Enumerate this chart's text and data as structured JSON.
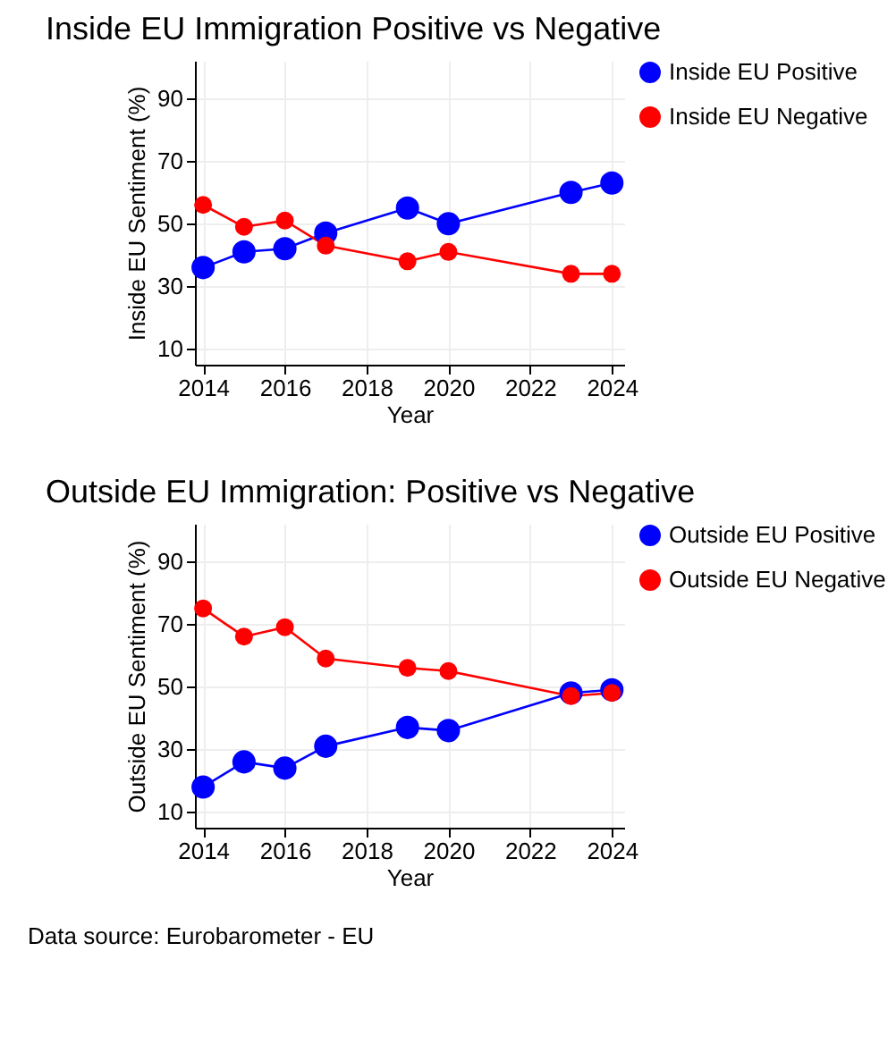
{
  "chart_data": [
    {
      "type": "line",
      "title": "Inside EU Immigration Positive vs Negative",
      "xlabel": "Year",
      "ylabel": "Inside EU Sentiment (%)",
      "x": [
        2014,
        2015,
        2016,
        2017,
        2019,
        2020,
        2023,
        2024
      ],
      "series": [
        {
          "name": "Inside EU Positive",
          "color": "#0000ff",
          "values": [
            36,
            41,
            42,
            47,
            55,
            50,
            60,
            63
          ]
        },
        {
          "name": "Inside EU Negative",
          "color": "#ff0000",
          "values": [
            56,
            49,
            51,
            43,
            38,
            41,
            34,
            34
          ]
        }
      ],
      "xlim": [
        2013.8,
        2024.3
      ],
      "xticks": [
        2014,
        2016,
        2018,
        2020,
        2022,
        2024
      ],
      "ylim": [
        5,
        102
      ],
      "yticks": [
        10,
        30,
        50,
        70,
        90
      ],
      "grid": true,
      "legend": "right",
      "marker": "circle"
    },
    {
      "type": "line",
      "title": "Outside EU Immigration: Positive vs Negative",
      "xlabel": "Year",
      "ylabel": "Outside EU Sentiment (%)",
      "x": [
        2014,
        2015,
        2016,
        2017,
        2019,
        2020,
        2023,
        2024
      ],
      "series": [
        {
          "name": "Outside EU Positive",
          "color": "#0000ff",
          "values": [
            18,
            26,
            24,
            31,
            37,
            36,
            48,
            49
          ]
        },
        {
          "name": "Outside EU Negative",
          "color": "#ff0000",
          "values": [
            75,
            66,
            69,
            59,
            56,
            55,
            47,
            48
          ]
        }
      ],
      "xlim": [
        2013.8,
        2024.3
      ],
      "xticks": [
        2014,
        2016,
        2018,
        2020,
        2022,
        2024
      ],
      "ylim": [
        5,
        102
      ],
      "yticks": [
        10,
        30,
        50,
        70,
        90
      ],
      "grid": true,
      "legend": "right",
      "marker": "circle",
      "annotations": [
        "Data source: Eurobarometer - EU"
      ]
    }
  ]
}
